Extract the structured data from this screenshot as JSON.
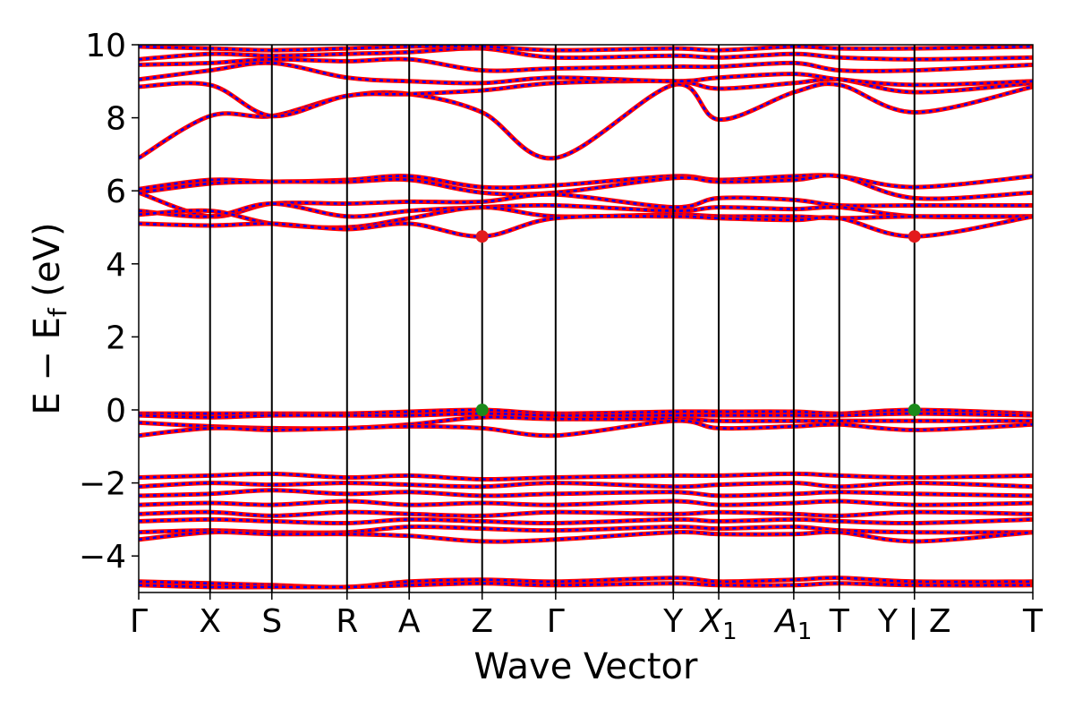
{
  "chart_data": {
    "type": "line",
    "title": "",
    "xlabel": "Wave Vector",
    "ylabel": "E − Ef (eV)",
    "ylabel_main": "E − E",
    "ylabel_sub": "f",
    "ylabel_unit": " (eV)",
    "ylim": [
      -5,
      10
    ],
    "yticks": [
      -4,
      -2,
      0,
      2,
      4,
      6,
      8,
      10
    ],
    "ytick_labels": [
      "−4",
      "−2",
      "0",
      "2",
      "4",
      "6",
      "8",
      "10"
    ],
    "kpath": [
      {
        "label": "Γ",
        "sub": "",
        "x": 0.0
      },
      {
        "label": "X",
        "sub": "",
        "x": 0.0798
      },
      {
        "label": "S",
        "sub": "",
        "x": 0.1489
      },
      {
        "label": "R",
        "sub": "",
        "x": 0.233
      },
      {
        "label": "A",
        "sub": "",
        "x": 0.3025
      },
      {
        "label": "Z",
        "sub": "",
        "x": 0.3841
      },
      {
        "label": "Γ",
        "sub": "",
        "x": 0.4663
      },
      {
        "label": "Y",
        "sub": "",
        "x": 0.5979
      },
      {
        "label": "X",
        "sub": "1",
        "x": 0.6487
      },
      {
        "label": "A",
        "sub": "1",
        "x": 0.7326
      },
      {
        "label": "T",
        "sub": "",
        "x": 0.7835
      },
      {
        "label": "Y | Z",
        "sub": "",
        "x": 0.8676
      },
      {
        "label": "T",
        "sub": "",
        "x": 1.0
      }
    ],
    "series": [
      {
        "values_x": [
          0,
          0.08,
          0.149,
          0.233,
          0.303,
          0.384,
          0.466,
          0.598,
          0.649,
          0.733,
          0.784,
          0.868,
          1.0
        ],
        "values": [
          6.9,
          8.05,
          8.05,
          8.6,
          8.65,
          8.15,
          6.9,
          8.9,
          7.95,
          8.7,
          8.9,
          8.15,
          8.85
        ]
      },
      {
        "values_x": [
          0,
          0.08,
          0.149,
          0.233,
          0.303,
          0.384,
          0.466,
          0.598,
          0.649,
          0.733,
          0.784,
          0.868,
          1.0
        ],
        "values": [
          8.85,
          8.9,
          8.05,
          8.6,
          8.65,
          8.75,
          8.95,
          9.0,
          8.8,
          8.95,
          9.05,
          8.7,
          8.95
        ]
      },
      {
        "values_x": [
          0,
          0.08,
          0.149,
          0.233,
          0.303,
          0.384,
          0.466,
          0.598,
          0.649,
          0.733,
          0.784,
          0.868,
          1.0
        ],
        "values": [
          9.05,
          9.3,
          9.5,
          9.1,
          9.0,
          8.95,
          9.1,
          9.0,
          9.1,
          9.2,
          9.05,
          8.9,
          9.0
        ]
      },
      {
        "values_x": [
          0,
          0.08,
          0.149,
          0.233,
          0.303,
          0.384,
          0.466,
          0.598,
          0.649,
          0.733,
          0.784,
          0.868,
          1.0
        ],
        "values": [
          9.45,
          9.5,
          9.6,
          9.55,
          9.6,
          9.3,
          9.35,
          9.4,
          9.4,
          9.5,
          9.3,
          9.3,
          9.45
        ]
      },
      {
        "values_x": [
          0,
          0.08,
          0.149,
          0.233,
          0.303,
          0.384,
          0.466,
          0.598,
          0.649,
          0.733,
          0.784,
          0.868,
          1.0
        ],
        "values": [
          9.6,
          9.75,
          9.7,
          9.75,
          9.8,
          9.9,
          9.65,
          9.7,
          9.65,
          9.75,
          9.65,
          9.6,
          9.65
        ]
      },
      {
        "values_x": [
          0,
          0.08,
          0.149,
          0.233,
          0.303,
          0.384,
          0.466,
          0.598,
          0.649,
          0.733,
          0.784,
          0.868,
          1.0
        ],
        "values": [
          9.95,
          9.9,
          9.85,
          9.9,
          9.95,
          9.95,
          9.85,
          9.9,
          9.85,
          9.95,
          9.9,
          9.9,
          9.95
        ]
      },
      {
        "values_x": [
          0,
          0.08,
          0.149,
          0.233,
          0.303,
          0.384,
          0.466,
          0.598,
          0.649,
          0.733,
          0.784,
          0.868,
          1.0
        ],
        "values": [
          6.05,
          6.3,
          6.25,
          6.3,
          6.4,
          6.1,
          6.15,
          6.4,
          6.3,
          6.4,
          6.4,
          6.1,
          6.4
        ]
      },
      {
        "values_x": [
          0,
          0.08,
          0.149,
          0.233,
          0.303,
          0.384,
          0.466,
          0.598,
          0.649,
          0.733,
          0.784,
          0.868,
          1.0
        ],
        "values": [
          5.95,
          6.2,
          6.25,
          6.25,
          6.3,
          5.95,
          5.95,
          6.35,
          6.25,
          6.3,
          6.4,
          5.8,
          5.95
        ]
      },
      {
        "values_x": [
          0,
          0.08,
          0.149,
          0.233,
          0.303,
          0.384,
          0.466,
          0.598,
          0.649,
          0.733,
          0.784,
          0.868,
          1.0
        ],
        "values": [
          5.95,
          5.3,
          5.65,
          5.65,
          5.7,
          5.7,
          5.9,
          5.55,
          5.8,
          5.75,
          5.6,
          5.6,
          5.6
        ]
      },
      {
        "values_x": [
          0,
          0.08,
          0.149,
          0.233,
          0.303,
          0.384,
          0.466,
          0.598,
          0.649,
          0.733,
          0.784,
          0.868,
          1.0
        ],
        "values": [
          5.45,
          5.3,
          5.65,
          5.3,
          5.45,
          5.55,
          5.6,
          5.45,
          5.55,
          5.5,
          5.55,
          5.3,
          5.3
        ]
      },
      {
        "values_x": [
          0,
          0.08,
          0.149,
          0.233,
          0.303,
          0.384,
          0.466,
          0.598,
          0.649,
          0.733,
          0.784,
          0.868,
          1.0
        ],
        "values": [
          5.35,
          5.45,
          5.1,
          5.0,
          5.25,
          5.55,
          5.3,
          5.35,
          5.3,
          5.3,
          5.25,
          5.3,
          5.3
        ]
      },
      {
        "values_x": [
          0,
          0.08,
          0.149,
          0.233,
          0.303,
          0.384,
          0.466,
          0.598,
          0.649,
          0.733,
          0.784,
          0.868,
          1.0
        ],
        "values": [
          5.1,
          5.05,
          5.1,
          4.95,
          5.1,
          4.75,
          5.25,
          5.3,
          5.25,
          5.2,
          5.25,
          4.75,
          5.3
        ]
      },
      {
        "values_x": [
          0,
          0.08,
          0.149,
          0.233,
          0.303,
          0.384,
          0.466,
          0.598,
          0.649,
          0.733,
          0.784,
          0.868,
          1.0
        ],
        "values": [
          -0.1,
          -0.1,
          -0.1,
          -0.1,
          -0.05,
          0.0,
          -0.1,
          -0.05,
          -0.05,
          -0.05,
          -0.1,
          0.0,
          -0.1
        ]
      },
      {
        "values_x": [
          0,
          0.08,
          0.149,
          0.233,
          0.303,
          0.384,
          0.466,
          0.598,
          0.649,
          0.733,
          0.784,
          0.868,
          1.0
        ],
        "values": [
          -0.15,
          -0.2,
          -0.15,
          -0.15,
          -0.15,
          -0.1,
          -0.15,
          -0.15,
          -0.15,
          -0.15,
          -0.15,
          -0.1,
          -0.15
        ]
      },
      {
        "values_x": [
          0,
          0.08,
          0.149,
          0.233,
          0.303,
          0.384,
          0.466,
          0.598,
          0.649,
          0.733,
          0.784,
          0.868,
          1.0
        ],
        "values": [
          -0.35,
          -0.45,
          -0.5,
          -0.5,
          -0.4,
          -0.2,
          -0.25,
          -0.25,
          -0.3,
          -0.3,
          -0.3,
          -0.3,
          -0.3
        ]
      },
      {
        "values_x": [
          0,
          0.08,
          0.149,
          0.233,
          0.303,
          0.384,
          0.466,
          0.598,
          0.649,
          0.733,
          0.784,
          0.868,
          1.0
        ],
        "values": [
          -0.7,
          -0.5,
          -0.55,
          -0.5,
          -0.45,
          -0.5,
          -0.7,
          -0.3,
          -0.5,
          -0.45,
          -0.4,
          -0.55,
          -0.4
        ]
      },
      {
        "values_x": [
          0,
          0.08,
          0.149,
          0.233,
          0.303,
          0.384,
          0.466,
          0.598,
          0.649,
          0.733,
          0.784,
          0.868,
          1.0
        ],
        "values": [
          -1.85,
          -1.8,
          -1.75,
          -1.85,
          -1.8,
          -1.9,
          -1.85,
          -1.8,
          -1.8,
          -1.75,
          -1.8,
          -1.85,
          -1.8
        ]
      },
      {
        "values_x": [
          0,
          0.08,
          0.149,
          0.233,
          0.303,
          0.384,
          0.466,
          0.598,
          0.649,
          0.733,
          0.784,
          0.868,
          1.0
        ],
        "values": [
          -2.1,
          -2.0,
          -2.05,
          -2.0,
          -2.05,
          -2.1,
          -2.0,
          -2.1,
          -2.05,
          -2.0,
          -2.1,
          -2.0,
          -2.1
        ]
      },
      {
        "values_x": [
          0,
          0.08,
          0.149,
          0.233,
          0.303,
          0.384,
          0.466,
          0.598,
          0.649,
          0.733,
          0.784,
          0.868,
          1.0
        ],
        "values": [
          -2.35,
          -2.3,
          -2.2,
          -2.3,
          -2.25,
          -2.35,
          -2.3,
          -2.25,
          -2.35,
          -2.3,
          -2.25,
          -2.3,
          -2.35
        ]
      },
      {
        "values_x": [
          0,
          0.08,
          0.149,
          0.233,
          0.303,
          0.384,
          0.466,
          0.598,
          0.649,
          0.733,
          0.784,
          0.868,
          1.0
        ],
        "values": [
          -2.6,
          -2.55,
          -2.6,
          -2.5,
          -2.6,
          -2.55,
          -2.6,
          -2.5,
          -2.6,
          -2.55,
          -2.5,
          -2.6,
          -2.55
        ]
      },
      {
        "values_x": [
          0,
          0.08,
          0.149,
          0.233,
          0.303,
          0.384,
          0.466,
          0.598,
          0.649,
          0.733,
          0.784,
          0.868,
          1.0
        ],
        "values": [
          -2.85,
          -2.8,
          -2.9,
          -2.8,
          -2.85,
          -2.9,
          -2.8,
          -2.85,
          -2.8,
          -2.85,
          -2.9,
          -2.8,
          -2.85
        ]
      },
      {
        "values_x": [
          0,
          0.08,
          0.149,
          0.233,
          0.303,
          0.384,
          0.466,
          0.598,
          0.649,
          0.733,
          0.784,
          0.868,
          1.0
        ],
        "values": [
          -3.05,
          -3.0,
          -3.05,
          -3.1,
          -3.0,
          -3.05,
          -3.1,
          -3.0,
          -3.05,
          -3.0,
          -3.05,
          -3.1,
          -3.0
        ]
      },
      {
        "values_x": [
          0,
          0.08,
          0.149,
          0.233,
          0.303,
          0.384,
          0.466,
          0.598,
          0.649,
          0.733,
          0.784,
          0.868,
          1.0
        ],
        "values": [
          -3.35,
          -3.3,
          -3.35,
          -3.35,
          -3.2,
          -3.25,
          -3.3,
          -3.2,
          -3.25,
          -3.2,
          -3.3,
          -3.35,
          -3.35
        ]
      },
      {
        "values_x": [
          0,
          0.08,
          0.149,
          0.233,
          0.303,
          0.384,
          0.466,
          0.598,
          0.649,
          0.733,
          0.784,
          0.868,
          1.0
        ],
        "values": [
          -3.55,
          -3.35,
          -3.4,
          -3.4,
          -3.45,
          -3.6,
          -3.55,
          -3.35,
          -3.4,
          -3.4,
          -3.35,
          -3.6,
          -3.35
        ]
      },
      {
        "values_x": [
          0,
          0.08,
          0.149,
          0.233,
          0.303,
          0.384,
          0.466,
          0.598,
          0.649,
          0.733,
          0.784,
          0.868,
          1.0
        ],
        "values": [
          -4.7,
          -4.75,
          -4.8,
          -4.85,
          -4.7,
          -4.65,
          -4.7,
          -4.6,
          -4.7,
          -4.65,
          -4.6,
          -4.7,
          -4.7
        ]
      },
      {
        "values_x": [
          0,
          0.08,
          0.149,
          0.233,
          0.303,
          0.384,
          0.466,
          0.598,
          0.649,
          0.733,
          0.784,
          0.868,
          1.0
        ],
        "values": [
          -4.8,
          -4.85,
          -4.85,
          -4.85,
          -4.8,
          -4.75,
          -4.8,
          -4.75,
          -4.8,
          -4.8,
          -4.75,
          -4.8,
          -4.8
        ]
      }
    ],
    "markers": [
      {
        "x": 0.3841,
        "y": 4.75,
        "color": "#e31a1c",
        "role": "cbm"
      },
      {
        "x": 0.8676,
        "y": 4.75,
        "color": "#e31a1c",
        "role": "cbm"
      },
      {
        "x": 0.3841,
        "y": 0.0,
        "color": "#1a8a1a",
        "role": "vbm"
      },
      {
        "x": 0.8676,
        "y": 0.0,
        "color": "#1a8a1a",
        "role": "vbm"
      }
    ],
    "colors": {
      "band_solid": "#ff0000",
      "band_dashed": "#0000ff",
      "kline": "#000000"
    }
  }
}
